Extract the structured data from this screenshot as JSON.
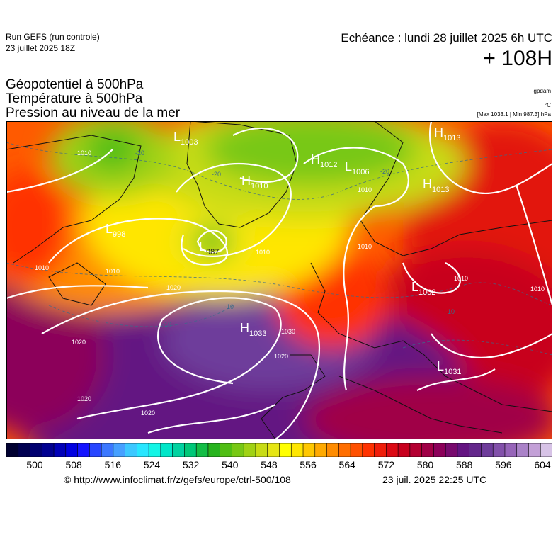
{
  "header": {
    "run_model": "Run GEFS (run controle)",
    "run_date": "23 juillet 2025 18Z",
    "echeance": "Echéance : lundi 28 juillet 2025 6h UTC",
    "lead_time": "+ 108H"
  },
  "titles": [
    "Géopotentiel à 500hPa",
    "Température à 500hPa",
    "Pression au niveau de la mer"
  ],
  "units": {
    "geopotential": "gpdam",
    "temperature": "°C",
    "pressure": "[Max 1033.1 | Min 987.3] hPa"
  },
  "map": {
    "pressure_centers": [
      {
        "type": "H",
        "value": "1033"
      },
      {
        "type": "L",
        "value": "987"
      },
      {
        "type": "H",
        "value": "1012"
      },
      {
        "type": "L",
        "value": "1006"
      },
      {
        "type": "H",
        "value": "1010"
      },
      {
        "type": "H",
        "value": "1013"
      },
      {
        "type": "L",
        "value": "1002"
      },
      {
        "type": "L",
        "value": "1031"
      },
      {
        "type": "L",
        "value": "998"
      },
      {
        "type": "L",
        "value": "1003"
      },
      {
        "type": "H",
        "value": "1013"
      }
    ],
    "isobar_labels": [
      "1020",
      "1020",
      "1020",
      "1020",
      "1020",
      "1030",
      "1010",
      "1010",
      "1010",
      "1010",
      "1010",
      "1010",
      "1010",
      "1010"
    ],
    "temperature_labels": [
      "-20",
      "-20",
      "-20",
      "-10",
      "-10",
      "-10"
    ]
  },
  "colorbar": {
    "colors": [
      "#000030",
      "#000050",
      "#000070",
      "#000090",
      "#0000b8",
      "#0000e0",
      "#1414ff",
      "#2846ff",
      "#3c78ff",
      "#46a0ff",
      "#3cc8ff",
      "#28e6ff",
      "#14f5e6",
      "#00e6c8",
      "#00d2a0",
      "#00c878",
      "#14be46",
      "#28b41e",
      "#50be14",
      "#78c814",
      "#a0d214",
      "#c8dc14",
      "#e6e614",
      "#ffff00",
      "#ffe600",
      "#ffc800",
      "#ffaa00",
      "#ff8c00",
      "#ff6e00",
      "#ff5000",
      "#ff3200",
      "#f01e0a",
      "#dc0a14",
      "#c8001e",
      "#b40032",
      "#a00046",
      "#8c005a",
      "#780a6e",
      "#641482",
      "#64288c",
      "#6e3c9b",
      "#8250aa",
      "#9664b9",
      "#aa82c8",
      "#c3a0d7",
      "#d7c3e6"
    ],
    "tick_labels": [
      "500",
      "508",
      "516",
      "524",
      "532",
      "540",
      "548",
      "556",
      "564",
      "572",
      "580",
      "588",
      "596",
      "604"
    ]
  },
  "footer": {
    "url": "© http://www.infoclimat.fr/z/gefs/europe/ctrl-500/108",
    "issued": "23 juil. 2025 22:25 UTC"
  }
}
